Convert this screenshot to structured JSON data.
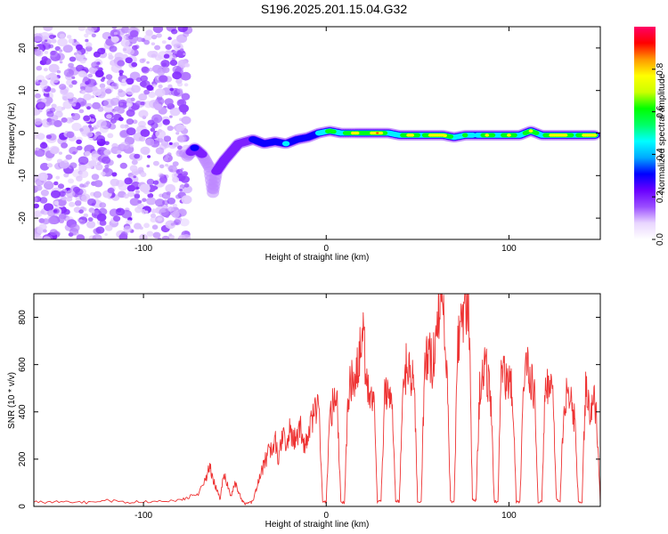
{
  "title": "S196.2025.201.15.04.G32",
  "chart_data": [
    {
      "type": "heatmap",
      "xlabel": "Height of straight line (km)",
      "ylabel": "Frequency (Hz)",
      "xlim": [
        -160,
        150
      ],
      "ylim": [
        -25,
        25
      ],
      "x_ticks": [
        -100,
        0,
        100
      ],
      "y_ticks": [
        -20,
        -10,
        0,
        10,
        20
      ],
      "grid": false,
      "colorbar": {
        "label": "Normalized spectral amplitude",
        "range": [
          0,
          1
        ],
        "ticks": [
          0.0,
          0.2,
          0.4,
          0.6,
          0.8
        ],
        "tick_labels": [
          "0.0",
          "0.2",
          "0.4",
          "0.6",
          "0.8"
        ],
        "colormap": [
          "#ffffff",
          "#e9d6ff",
          "#9a4dff",
          "#6a00ff",
          "#0000ff",
          "#00aaff",
          "#00ffff",
          "#00ff66",
          "#00ff00",
          "#ccff00",
          "#ffff00",
          "#ff9900",
          "#ff0000",
          "#ff0066"
        ]
      },
      "noise_region": {
        "x_range": [
          -160,
          -76
        ],
        "y_range": [
          -25,
          25
        ],
        "amplitude_range": [
          0.02,
          0.15
        ]
      },
      "ridge": [
        {
          "x": -76,
          "y": -5.5,
          "amp": 0.15
        },
        {
          "x": -72,
          "y": -3.5,
          "amp": 0.3
        },
        {
          "x": -68,
          "y": -5.0,
          "amp": 0.2
        },
        {
          "x": -64,
          "y": -8.0,
          "amp": 0.15
        },
        {
          "x": -62,
          "y": -14.0,
          "amp": 0.15
        },
        {
          "x": -60,
          "y": -9.0,
          "amp": 0.2
        },
        {
          "x": -56,
          "y": -6.5,
          "amp": 0.2
        },
        {
          "x": -52,
          "y": -4.5,
          "amp": 0.2
        },
        {
          "x": -48,
          "y": -2.5,
          "amp": 0.25
        },
        {
          "x": -44,
          "y": -2.0,
          "amp": 0.25
        },
        {
          "x": -40,
          "y": -1.5,
          "amp": 0.3
        },
        {
          "x": -34,
          "y": -2.5,
          "amp": 0.35
        },
        {
          "x": -28,
          "y": -2.0,
          "amp": 0.35
        },
        {
          "x": -22,
          "y": -2.5,
          "amp": 0.45
        },
        {
          "x": -16,
          "y": -1.5,
          "amp": 0.3
        },
        {
          "x": -10,
          "y": -1.0,
          "amp": 0.4
        },
        {
          "x": -4,
          "y": 0.0,
          "amp": 0.45
        },
        {
          "x": 2,
          "y": 0.5,
          "amp": 0.65
        },
        {
          "x": 8,
          "y": 0.0,
          "amp": 0.5
        },
        {
          "x": 16,
          "y": 0.0,
          "amp": 0.8
        },
        {
          "x": 22,
          "y": 0.0,
          "amp": 0.6
        },
        {
          "x": 28,
          "y": 0.0,
          "amp": 0.9
        },
        {
          "x": 34,
          "y": 0.0,
          "amp": 0.5
        },
        {
          "x": 40,
          "y": -0.5,
          "amp": 0.5
        },
        {
          "x": 46,
          "y": -0.5,
          "amp": 0.85
        },
        {
          "x": 52,
          "y": -0.5,
          "amp": 0.5
        },
        {
          "x": 58,
          "y": -0.5,
          "amp": 0.8
        },
        {
          "x": 64,
          "y": -0.5,
          "amp": 0.85
        },
        {
          "x": 70,
          "y": -1.0,
          "amp": 0.5
        },
        {
          "x": 76,
          "y": -0.5,
          "amp": 0.6
        },
        {
          "x": 82,
          "y": -0.5,
          "amp": 0.4
        },
        {
          "x": 88,
          "y": -0.5,
          "amp": 0.75
        },
        {
          "x": 94,
          "y": -0.5,
          "amp": 0.5
        },
        {
          "x": 100,
          "y": -0.5,
          "amp": 0.75
        },
        {
          "x": 106,
          "y": -0.5,
          "amp": 0.5
        },
        {
          "x": 112,
          "y": 0.5,
          "amp": 0.75
        },
        {
          "x": 118,
          "y": -0.5,
          "amp": 0.5
        },
        {
          "x": 124,
          "y": -0.5,
          "amp": 0.8
        },
        {
          "x": 130,
          "y": -0.5,
          "amp": 0.85
        },
        {
          "x": 136,
          "y": -0.5,
          "amp": 0.5
        },
        {
          "x": 142,
          "y": -0.5,
          "amp": 0.85
        },
        {
          "x": 148,
          "y": -0.5,
          "amp": 0.8
        }
      ]
    },
    {
      "type": "line",
      "xlabel": "Height of straight line (km)",
      "ylabel": "SNR (10 * v/v)",
      "xlim": [
        -160,
        150
      ],
      "ylim": [
        0,
        900
      ],
      "x_ticks": [
        -100,
        0,
        100
      ],
      "y_ticks": [
        0,
        200,
        400,
        600,
        800
      ],
      "grid": false,
      "series": [
        {
          "color": "#ee3333",
          "x": [
            -160,
            -150,
            -140,
            -130,
            -120,
            -110,
            -100,
            -90,
            -80,
            -75,
            -70,
            -66,
            -64,
            -62,
            -60,
            -58,
            -56,
            -54,
            -52,
            -50,
            -48,
            -46,
            -44,
            -42,
            -40,
            -38,
            -36,
            -34,
            -32,
            -30,
            -28,
            -26,
            -24,
            -22,
            -20,
            -18,
            -16,
            -14,
            -12,
            -10,
            -8,
            -6,
            -4,
            -2,
            0,
            2,
            4,
            6,
            8,
            10,
            12,
            14,
            16,
            18,
            20,
            22,
            24,
            26,
            28,
            30,
            32,
            34,
            36,
            38,
            40,
            42,
            44,
            46,
            48,
            50,
            52,
            54,
            56,
            58,
            60,
            62,
            64,
            66,
            68,
            70,
            72,
            74,
            76,
            78,
            80,
            82,
            84,
            86,
            88,
            90,
            92,
            94,
            96,
            98,
            100,
            102,
            104,
            106,
            108,
            110,
            112,
            114,
            116,
            118,
            120,
            122,
            124,
            126,
            128,
            130,
            132,
            134,
            136,
            138,
            140,
            142,
            144,
            146,
            148,
            150
          ],
          "y": [
            20,
            18,
            22,
            15,
            25,
            18,
            20,
            22,
            25,
            40,
            55,
            110,
            175,
            120,
            70,
            30,
            140,
            90,
            40,
            110,
            60,
            25,
            10,
            15,
            20,
            80,
            130,
            180,
            220,
            250,
            280,
            200,
            300,
            260,
            320,
            280,
            300,
            330,
            250,
            280,
            360,
            420,
            430,
            20,
            20,
            380,
            440,
            430,
            20,
            15,
            460,
            550,
            520,
            620,
            760,
            540,
            470,
            460,
            20,
            20,
            480,
            500,
            420,
            25,
            20,
            480,
            600,
            560,
            600,
            20,
            20,
            620,
            660,
            590,
            700,
            880,
            780,
            620,
            20,
            20,
            680,
            750,
            860,
            890,
            30,
            25,
            500,
            600,
            560,
            450,
            20,
            20,
            620,
            520,
            560,
            470,
            20,
            20,
            500,
            580,
            530,
            480,
            20,
            20,
            560,
            460,
            500,
            30,
            20,
            420,
            480,
            450,
            360,
            20,
            20,
            520,
            400,
            470,
            380,
            10
          ]
        }
      ]
    }
  ]
}
